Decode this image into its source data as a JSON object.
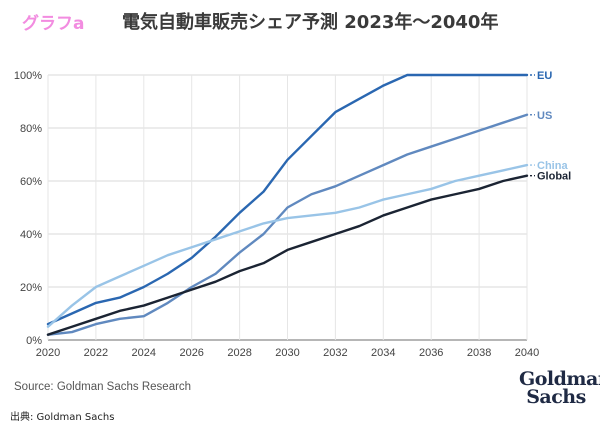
{
  "header": {
    "badge": "グラフa",
    "title": "電気自動車販売シェア予測 2023年〜2040年"
  },
  "footer": {
    "source": "Source: Goldman Sachs Research",
    "credit": "出典: Goldman  Sachs",
    "logo_line1": "Goldman",
    "logo_line2": "Sachs"
  },
  "chart_data": {
    "type": "line",
    "x": [
      2020,
      2021,
      2022,
      2023,
      2024,
      2025,
      2026,
      2027,
      2028,
      2029,
      2030,
      2031,
      2032,
      2033,
      2034,
      2035,
      2036,
      2037,
      2038,
      2039,
      2040
    ],
    "xticks": [
      "2020",
      "2022",
      "2024",
      "2026",
      "2028",
      "2030",
      "2032",
      "2034",
      "2036",
      "2038",
      "2040"
    ],
    "yticks": [
      "0%",
      "20%",
      "40%",
      "60%",
      "80%",
      "100%"
    ],
    "ylim": [
      0,
      100
    ],
    "xlim": [
      2020,
      2040
    ],
    "grid": true,
    "legend": "end-of-line labels",
    "series": [
      {
        "name": "EU",
        "color": "#2a67b1",
        "values": [
          6,
          10,
          14,
          16,
          20,
          25,
          31,
          39,
          48,
          56,
          68,
          77,
          86,
          91,
          96,
          100,
          100,
          100,
          100,
          100,
          100
        ]
      },
      {
        "name": "US",
        "color": "#6089bf",
        "values": [
          2,
          3,
          6,
          8,
          9,
          14,
          20,
          25,
          33,
          40,
          50,
          55,
          58,
          62,
          66,
          70,
          73,
          76,
          79,
          82,
          85
        ]
      },
      {
        "name": "China",
        "color": "#99c4e7",
        "values": [
          5,
          13,
          20,
          24,
          28,
          32,
          35,
          38,
          41,
          44,
          46,
          47,
          48,
          50,
          53,
          55,
          57,
          60,
          62,
          64,
          66
        ]
      },
      {
        "name": "Global",
        "color": "#1b2433",
        "values": [
          2,
          5,
          8,
          11,
          13,
          16,
          19,
          22,
          26,
          29,
          34,
          37,
          40,
          43,
          47,
          50,
          53,
          55,
          57,
          60,
          62
        ]
      }
    ]
  }
}
